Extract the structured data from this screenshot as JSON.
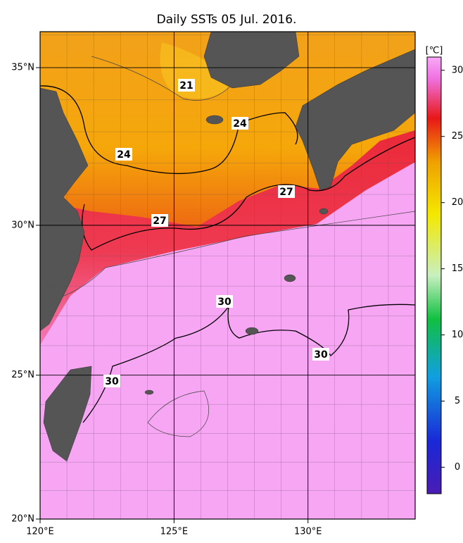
{
  "map": {
    "title": "Daily SSTs 05 Jul. 2016.",
    "xlim": [
      120,
      134
    ],
    "ylim": [
      20,
      36.1
    ],
    "xticks": [
      {
        "value": 120,
        "label": "120°E"
      },
      {
        "value": 125,
        "label": "125°E"
      },
      {
        "value": 130,
        "label": "130°E"
      }
    ],
    "yticks": [
      {
        "value": 20,
        "label": "20°N"
      },
      {
        "value": 25,
        "label": "25°N"
      },
      {
        "value": 30,
        "label": "30°N"
      },
      {
        "value": 35,
        "label": "35°N"
      }
    ],
    "colorbar": {
      "unit": "[℃]",
      "clim": [
        -2,
        31
      ],
      "ticks": [
        0,
        5,
        10,
        15,
        20,
        25,
        30
      ]
    },
    "contour_labels": [
      21,
      24,
      24,
      27,
      27,
      30,
      30,
      30
    ]
  }
}
